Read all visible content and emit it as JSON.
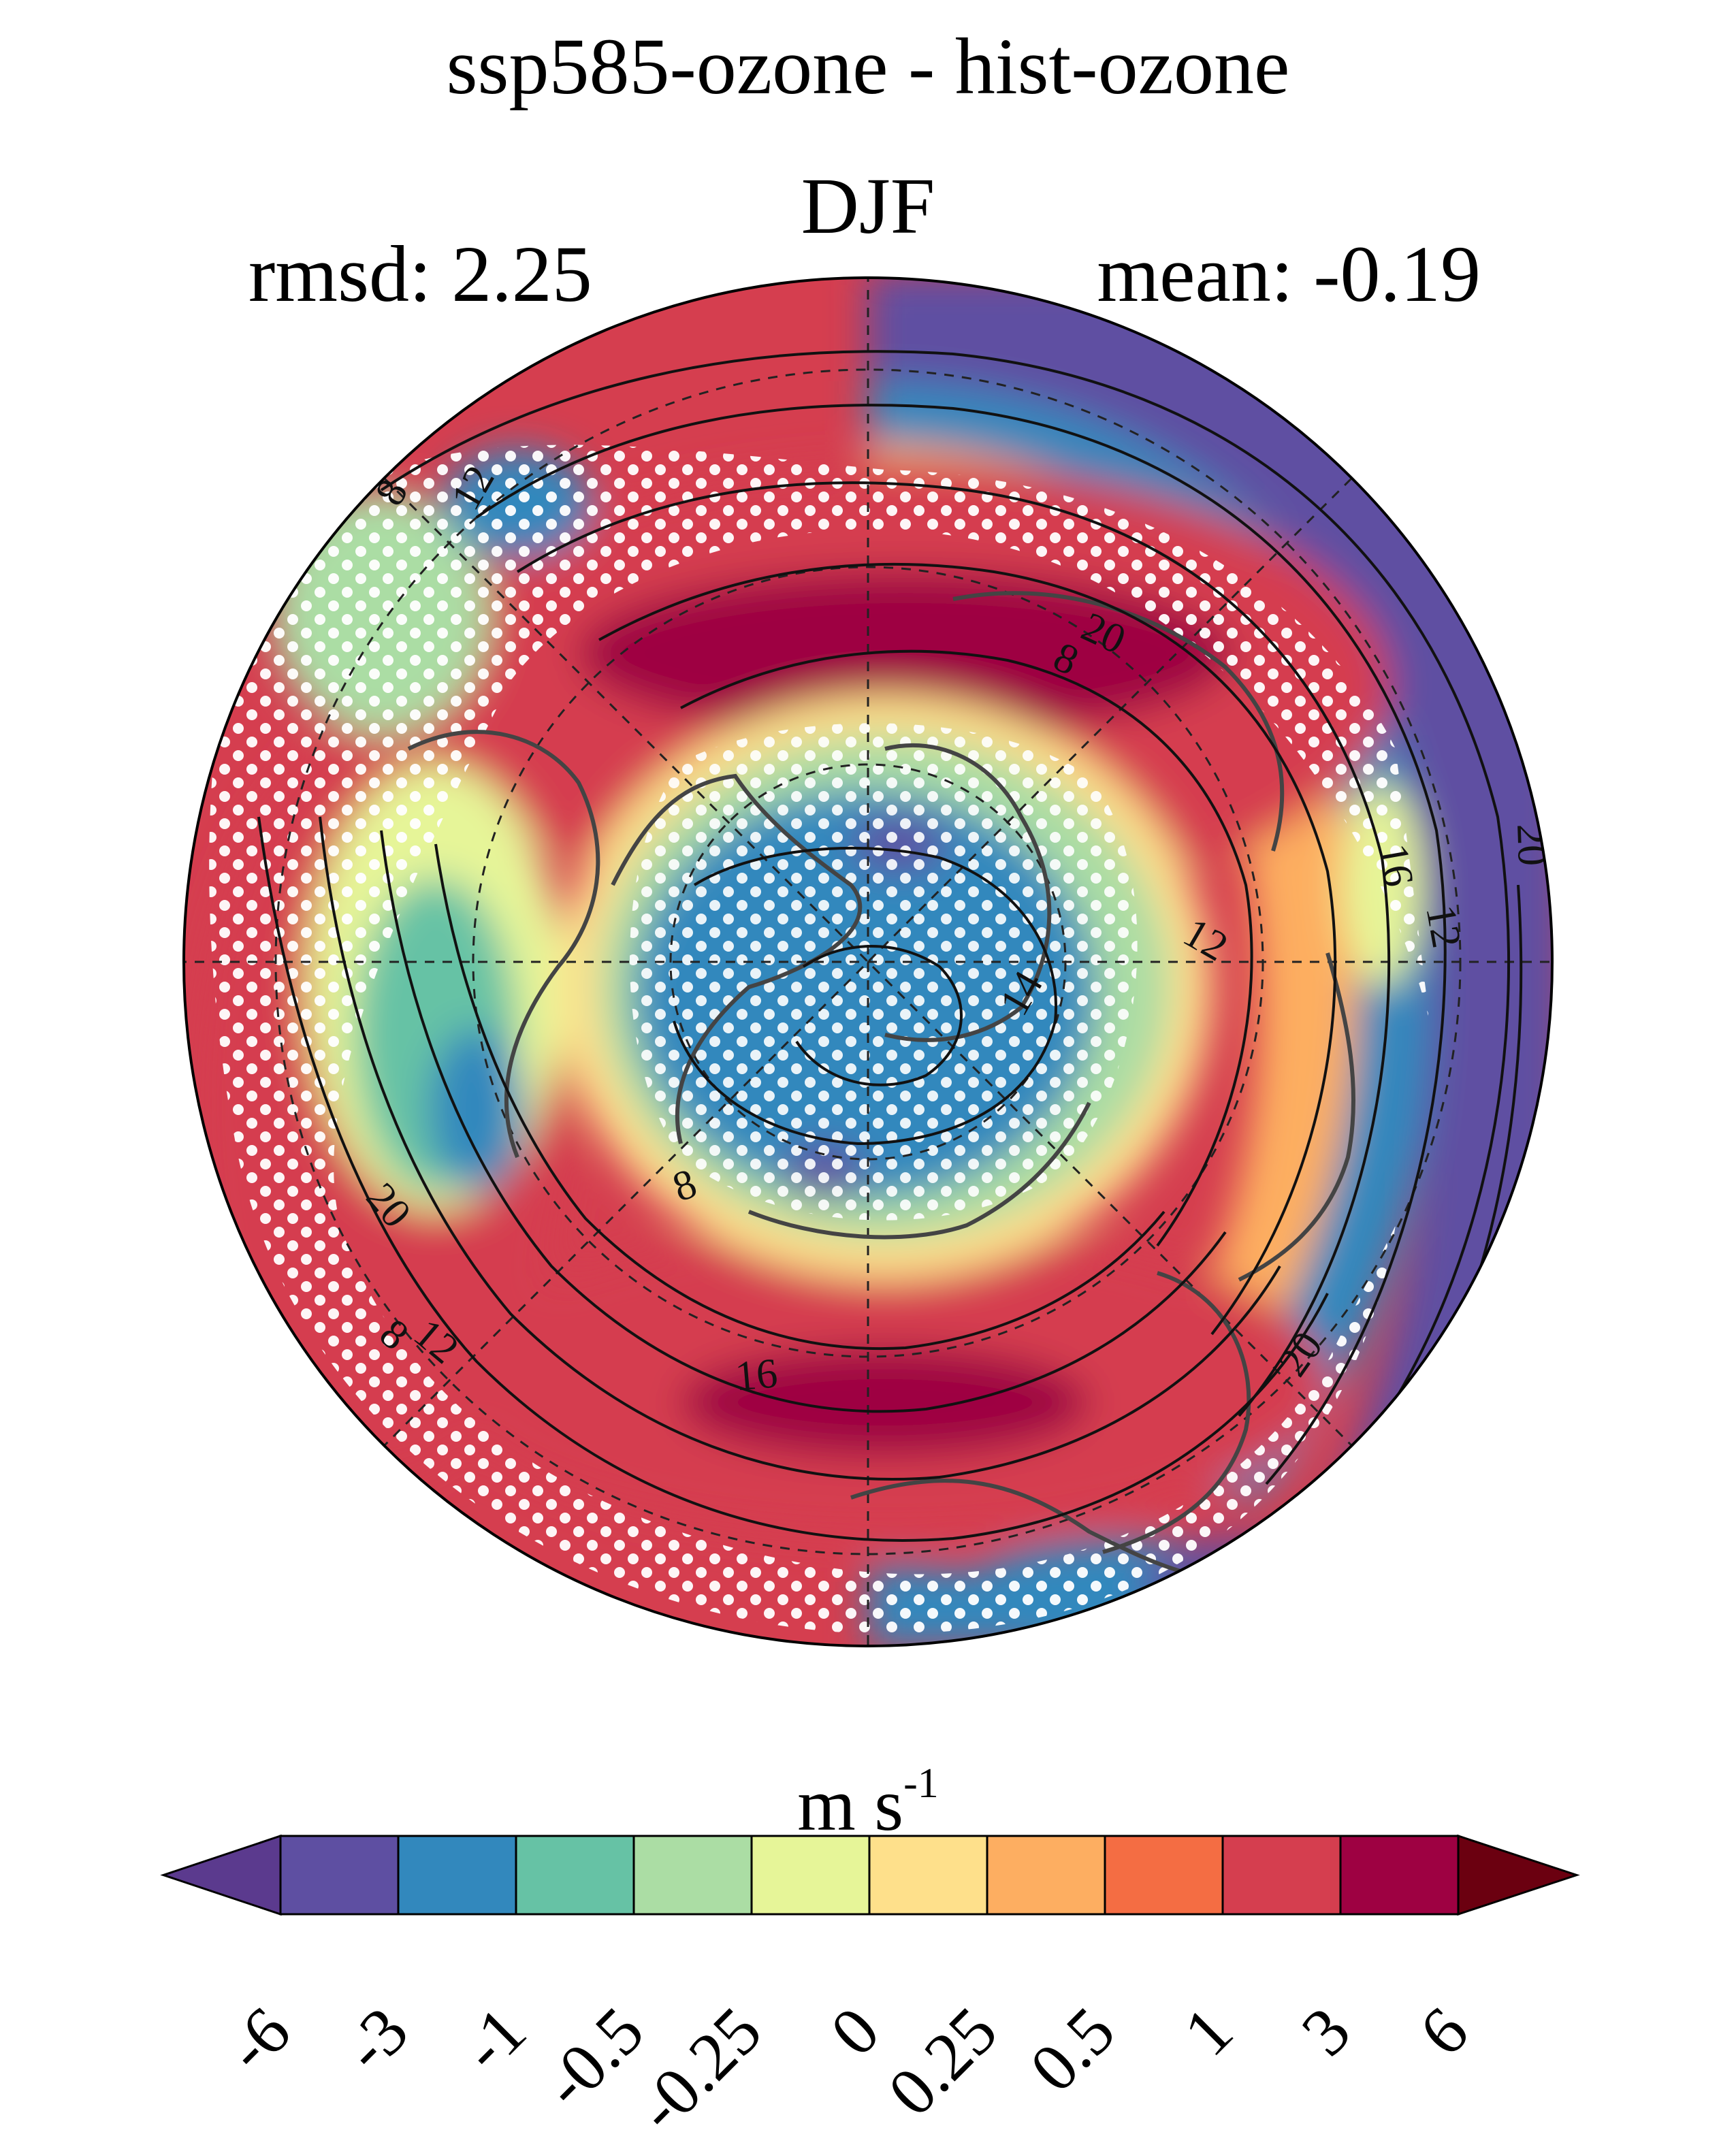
{
  "header": {
    "title": "ssp585-ozone - hist-ozone",
    "season": "DJF",
    "rmsd_label": "rmsd: 2.25",
    "mean_label": "mean: -0.19"
  },
  "colorbar": {
    "units_base": "m s",
    "units_exp": "-1",
    "tick_labels": [
      "-6",
      "-3",
      "-1",
      "-0.5",
      "-0.25",
      "0",
      "0.25",
      "0.5",
      "1",
      "3",
      "6"
    ],
    "colors": [
      "#5e4fa2",
      "#3288bd",
      "#66c2a5",
      "#abdda4",
      "#e6f598",
      "#fee08b",
      "#fdae61",
      "#f46d43",
      "#d53e4f",
      "#9e0142"
    ],
    "under_color": "#5b3a8e",
    "over_color": "#6b0010"
  },
  "map": {
    "projection": "north polar stereographic",
    "contour_labels": [
      "8",
      "12",
      "20",
      "8",
      "16",
      "12",
      "20",
      "14",
      "12",
      "8",
      "20",
      "8",
      "12",
      "16",
      "20"
    ],
    "stippling": "white dots mark significant differences"
  }
}
